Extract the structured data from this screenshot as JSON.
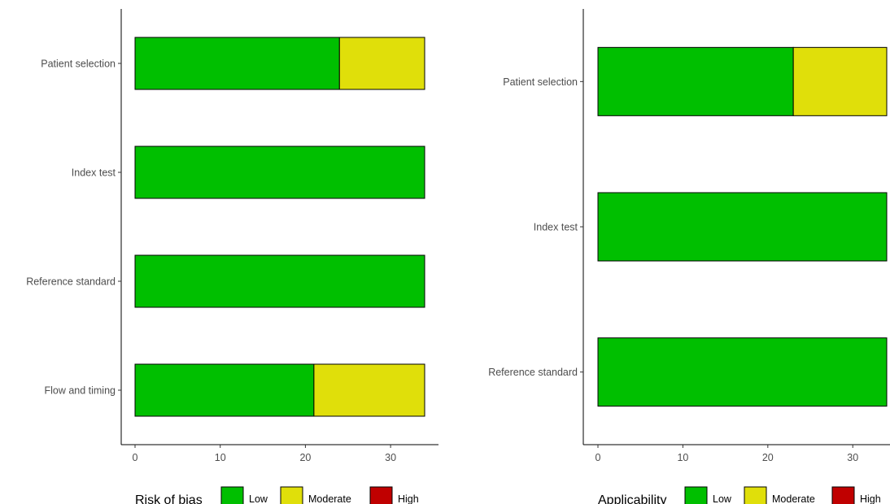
{
  "colors": {
    "Low": "#00bf00",
    "Moderate": "#e0df0a",
    "High": "#c00000"
  },
  "chart_data": [
    {
      "type": "bar",
      "orientation": "horizontal",
      "stacked": true,
      "title": "",
      "xlabel": "",
      "ylabel": "",
      "xlim": [
        0,
        34
      ],
      "xticks": [
        0,
        10,
        20,
        30
      ],
      "categories": [
        "Patient selection",
        "Index test",
        "Reference standard",
        "Flow and timing"
      ],
      "series": [
        {
          "name": "Low",
          "values": [
            24,
            34,
            34,
            21
          ]
        },
        {
          "name": "Moderate",
          "values": [
            10,
            0,
            0,
            13
          ]
        },
        {
          "name": "High",
          "values": [
            0,
            0,
            0,
            0
          ]
        }
      ],
      "legend": {
        "title": "Risk of bias",
        "entries": [
          "Low",
          "Moderate",
          "High"
        ],
        "position": "bottom"
      }
    },
    {
      "type": "bar",
      "orientation": "horizontal",
      "stacked": true,
      "title": "",
      "xlabel": "",
      "ylabel": "",
      "xlim": [
        0,
        34
      ],
      "xticks": [
        0,
        10,
        20,
        30
      ],
      "categories": [
        "Patient selection",
        "Index test",
        "Reference standard"
      ],
      "series": [
        {
          "name": "Low",
          "values": [
            23,
            34,
            34
          ]
        },
        {
          "name": "Moderate",
          "values": [
            11,
            0,
            0
          ]
        },
        {
          "name": "High",
          "values": [
            0,
            0,
            0
          ]
        }
      ],
      "legend": {
        "title": "Applicability",
        "entries": [
          "Low",
          "Moderate",
          "High"
        ],
        "position": "bottom"
      }
    }
  ]
}
